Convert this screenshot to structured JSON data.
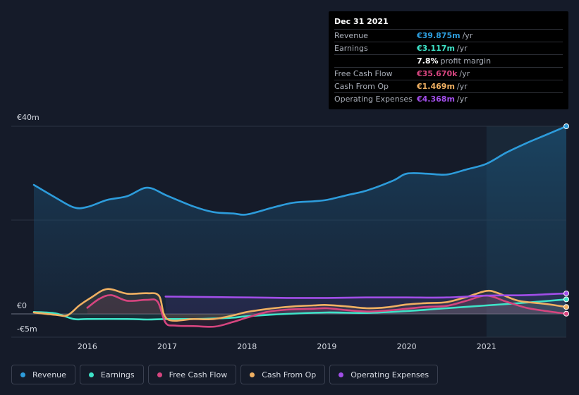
{
  "tooltip": {
    "date": "Dec 31 2021",
    "rows": [
      {
        "label": "Revenue",
        "value": "€39.875m",
        "unit": "/yr",
        "color": "#2d9cdb"
      },
      {
        "label": "Earnings",
        "value": "€3.117m",
        "unit": "/yr",
        "color": "#3ee3c8"
      },
      {
        "label": "",
        "value": "7.8%",
        "unit": "profit margin",
        "color": "#ffffff"
      },
      {
        "label": "Free Cash Flow",
        "value": "€35.670k",
        "unit": "/yr",
        "color": "#d6457f"
      },
      {
        "label": "Cash From Op",
        "value": "€1.469m",
        "unit": "/yr",
        "color": "#f0b062"
      },
      {
        "label": "Operating Expenses",
        "value": "€4.368m",
        "unit": "/yr",
        "color": "#a14ee8"
      }
    ]
  },
  "legend": [
    {
      "label": "Revenue",
      "color": "#2d9cdb"
    },
    {
      "label": "Earnings",
      "color": "#3ee3c8"
    },
    {
      "label": "Free Cash Flow",
      "color": "#d6457f"
    },
    {
      "label": "Cash From Op",
      "color": "#f0b062"
    },
    {
      "label": "Operating Expenses",
      "color": "#a14ee8"
    }
  ],
  "chart_data": {
    "type": "line",
    "x_unit": "year",
    "y_unit": "€m",
    "ylim": [
      -5,
      40
    ],
    "xlim": [
      2015.33,
      2022.0
    ],
    "y_tick_labels": [
      {
        "label": "€40m",
        "value": 40
      },
      {
        "label": "€0",
        "value": 0
      },
      {
        "label": "-€5m",
        "value": -5
      }
    ],
    "x_tick_labels": [
      {
        "label": "2016",
        "value": 2016
      },
      {
        "label": "2017",
        "value": 2017
      },
      {
        "label": "2018",
        "value": 2018
      },
      {
        "label": "2019",
        "value": 2019
      },
      {
        "label": "2020",
        "value": 2020
      },
      {
        "label": "2021",
        "value": 2021
      }
    ],
    "highlight_from": 2021.0,
    "gridlines": [
      40,
      20,
      0
    ],
    "series": [
      {
        "name": "Revenue",
        "color": "#2d9cdb",
        "area": true,
        "points": [
          [
            2015.33,
            27.5
          ],
          [
            2015.6,
            24.8
          ],
          [
            2015.83,
            22.7
          ],
          [
            2016.0,
            22.8
          ],
          [
            2016.25,
            24.3
          ],
          [
            2016.5,
            25.1
          ],
          [
            2016.75,
            26.9
          ],
          [
            2017.0,
            25.2
          ],
          [
            2017.33,
            22.9
          ],
          [
            2017.58,
            21.7
          ],
          [
            2017.83,
            21.4
          ],
          [
            2018.0,
            21.2
          ],
          [
            2018.33,
            22.7
          ],
          [
            2018.58,
            23.7
          ],
          [
            2018.83,
            24.0
          ],
          [
            2019.0,
            24.3
          ],
          [
            2019.25,
            25.3
          ],
          [
            2019.5,
            26.3
          ],
          [
            2019.83,
            28.4
          ],
          [
            2020.0,
            29.9
          ],
          [
            2020.25,
            29.9
          ],
          [
            2020.5,
            29.7
          ],
          [
            2020.75,
            30.8
          ],
          [
            2021.0,
            32.0
          ],
          [
            2021.25,
            34.4
          ],
          [
            2021.5,
            36.4
          ],
          [
            2021.75,
            38.2
          ],
          [
            2022.0,
            40.0
          ]
        ]
      },
      {
        "name": "Earnings",
        "color": "#3ee3c8",
        "points": [
          [
            2015.33,
            0.4
          ],
          [
            2015.6,
            0.1
          ],
          [
            2015.83,
            -1.1
          ],
          [
            2016.0,
            -1.1
          ],
          [
            2016.5,
            -1.1
          ],
          [
            2016.75,
            -1.2
          ],
          [
            2017.0,
            -1.1
          ],
          [
            2017.33,
            -1.1
          ],
          [
            2017.58,
            -1.0
          ],
          [
            2017.83,
            -0.8
          ],
          [
            2018.0,
            -0.5
          ],
          [
            2018.5,
            0.0
          ],
          [
            2019.0,
            0.3
          ],
          [
            2019.5,
            0.2
          ],
          [
            2020.0,
            0.6
          ],
          [
            2020.5,
            1.2
          ],
          [
            2021.0,
            1.8
          ],
          [
            2021.5,
            2.4
          ],
          [
            2022.0,
            3.1
          ]
        ]
      },
      {
        "name": "Free Cash Flow",
        "color": "#d6457f",
        "points": [
          [
            2016.0,
            1.3
          ],
          [
            2016.15,
            3.2
          ],
          [
            2016.3,
            4.0
          ],
          [
            2016.5,
            2.8
          ],
          [
            2016.75,
            3.0
          ],
          [
            2016.88,
            2.6
          ],
          [
            2016.98,
            -1.9
          ],
          [
            2017.1,
            -2.5
          ],
          [
            2017.33,
            -2.6
          ],
          [
            2017.6,
            -2.7
          ],
          [
            2017.83,
            -1.7
          ],
          [
            2018.0,
            -0.8
          ],
          [
            2018.25,
            0.4
          ],
          [
            2018.5,
            0.9
          ],
          [
            2018.83,
            1.1
          ],
          [
            2019.0,
            1.2
          ],
          [
            2019.25,
            0.8
          ],
          [
            2019.5,
            0.5
          ],
          [
            2019.75,
            0.7
          ],
          [
            2020.0,
            1.1
          ],
          [
            2020.25,
            1.5
          ],
          [
            2020.5,
            1.7
          ],
          [
            2020.75,
            2.8
          ],
          [
            2021.0,
            3.9
          ],
          [
            2021.25,
            2.6
          ],
          [
            2021.5,
            1.3
          ],
          [
            2021.75,
            0.6
          ],
          [
            2022.0,
            0.04
          ]
        ]
      },
      {
        "name": "Cash From Op",
        "color": "#f0b062",
        "points": [
          [
            2015.33,
            0.3
          ],
          [
            2015.6,
            -0.2
          ],
          [
            2015.75,
            -0.3
          ],
          [
            2015.9,
            1.8
          ],
          [
            2016.05,
            3.5
          ],
          [
            2016.25,
            5.3
          ],
          [
            2016.5,
            4.3
          ],
          [
            2016.75,
            4.4
          ],
          [
            2016.9,
            3.8
          ],
          [
            2017.0,
            -1.1
          ],
          [
            2017.33,
            -1.1
          ],
          [
            2017.58,
            -1.1
          ],
          [
            2017.83,
            -0.3
          ],
          [
            2018.0,
            0.4
          ],
          [
            2018.33,
            1.2
          ],
          [
            2018.58,
            1.6
          ],
          [
            2018.83,
            1.8
          ],
          [
            2019.0,
            1.9
          ],
          [
            2019.25,
            1.6
          ],
          [
            2019.5,
            1.2
          ],
          [
            2019.75,
            1.4
          ],
          [
            2020.0,
            2.0
          ],
          [
            2020.25,
            2.3
          ],
          [
            2020.5,
            2.5
          ],
          [
            2020.75,
            3.6
          ],
          [
            2021.0,
            4.9
          ],
          [
            2021.15,
            4.4
          ],
          [
            2021.4,
            2.8
          ],
          [
            2021.75,
            2.1
          ],
          [
            2022.0,
            1.47
          ]
        ]
      },
      {
        "name": "Operating Expenses",
        "color": "#a14ee8",
        "points": [
          [
            2016.98,
            3.7
          ],
          [
            2017.5,
            3.6
          ],
          [
            2018.0,
            3.5
          ],
          [
            2018.5,
            3.4
          ],
          [
            2019.0,
            3.4
          ],
          [
            2019.5,
            3.5
          ],
          [
            2020.0,
            3.5
          ],
          [
            2020.5,
            3.5
          ],
          [
            2021.0,
            3.9
          ],
          [
            2021.5,
            4.0
          ],
          [
            2022.0,
            4.37
          ]
        ]
      }
    ]
  }
}
